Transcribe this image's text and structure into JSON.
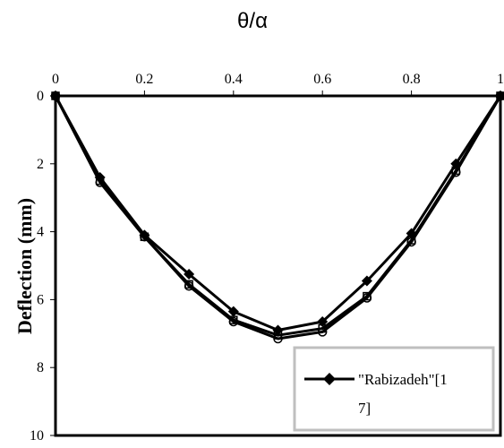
{
  "chart_data": {
    "type": "line",
    "xlabel": "θ/α",
    "ylabel": "Deflection (mm)",
    "xlim": [
      0,
      1
    ],
    "ylim": [
      0,
      10
    ],
    "y_inverted": true,
    "x_axis_position": "top",
    "xticks": [
      "0",
      "0.2",
      "0.4",
      "0.6",
      "0.8",
      "1"
    ],
    "yticks": [
      "0",
      "2",
      "4",
      "6",
      "8",
      "10"
    ],
    "grid": false,
    "legend_position": "bottom-right",
    "legend_label": "\"Rabizadeh\"[17]",
    "legend_lines": [
      "\"Rabizadeh\"[1",
      "7]"
    ],
    "series": [
      {
        "name": "\"Rabizadeh\"[17]",
        "marker": "diamond",
        "x": [
          0,
          0.1,
          0.2,
          0.3,
          0.4,
          0.5,
          0.6,
          0.7,
          0.8,
          0.9,
          1.0
        ],
        "y": [
          0,
          2.4,
          4.1,
          5.25,
          6.35,
          6.9,
          6.65,
          5.45,
          4.05,
          2.0,
          0
        ]
      },
      {
        "marker": "square",
        "x": [
          0,
          0.1,
          0.2,
          0.3,
          0.4,
          0.5,
          0.6,
          0.7,
          0.8,
          0.9,
          1.0
        ],
        "y": [
          0,
          2.5,
          4.15,
          5.55,
          6.6,
          7.05,
          6.85,
          5.9,
          4.25,
          2.2,
          0
        ]
      },
      {
        "marker": "circle",
        "x": [
          0,
          0.1,
          0.2,
          0.3,
          0.4,
          0.5,
          0.6,
          0.7,
          0.8,
          0.9,
          1.0
        ],
        "y": [
          0,
          2.55,
          4.15,
          5.6,
          6.65,
          7.15,
          6.95,
          5.95,
          4.3,
          2.25,
          0
        ]
      }
    ],
    "colors": {
      "line": "#000000",
      "legend_border": "#bfbfbf"
    }
  }
}
